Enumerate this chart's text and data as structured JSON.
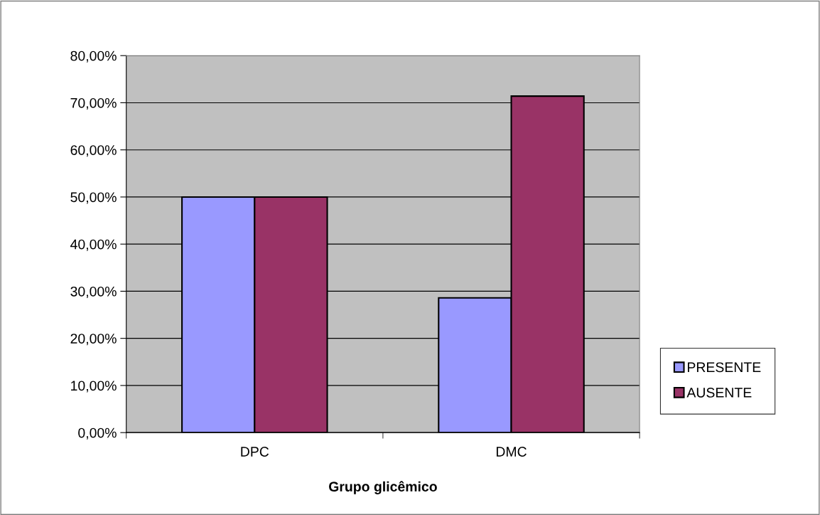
{
  "chart_data": {
    "type": "bar",
    "xlabel": "Grupo glicêmico",
    "categories": [
      "DPC",
      "DMC"
    ],
    "series": [
      {
        "name": "PRESENTE",
        "color": "#9999ff",
        "values": [
          50.0,
          28.6
        ]
      },
      {
        "name": "AUSENTE",
        "color": "#993366",
        "values": [
          50.0,
          71.4
        ]
      }
    ],
    "ylim": [
      0,
      80
    ],
    "yticks": [
      {
        "value": 0,
        "label": "0,00%"
      },
      {
        "value": 10,
        "label": "10,00%"
      },
      {
        "value": 20,
        "label": "20,00%"
      },
      {
        "value": 30,
        "label": "30,00%"
      },
      {
        "value": 40,
        "label": "40,00%"
      },
      {
        "value": 50,
        "label": "50,00%"
      },
      {
        "value": 60,
        "label": "60,00%"
      },
      {
        "value": 70,
        "label": "70,00%"
      },
      {
        "value": 80,
        "label": "80,00%"
      }
    ],
    "grid": "y",
    "legend": "right"
  }
}
